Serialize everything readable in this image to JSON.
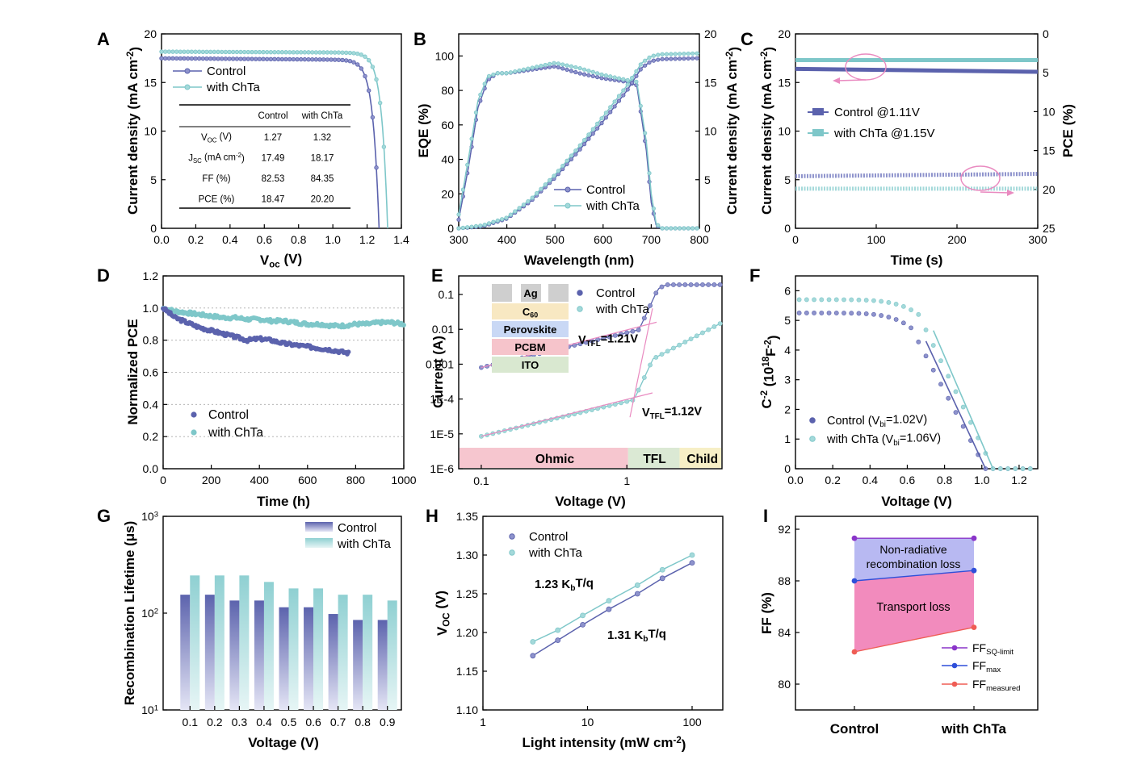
{
  "colors": {
    "control": "#5b62ad",
    "chta": "#7ec7c9",
    "control_light": "#8e93cc",
    "chta_light": "#a4d9da",
    "pink": "#e98ac0",
    "grid": "#bbbbbb",
    "ohmic_band": "#f6c6cf",
    "tfl_band": "#dbe9d4",
    "child_band": "#f7efc6",
    "ag": "#cfcfcf",
    "c60": "#f8e8c2",
    "perovskite": "#c9d8f5",
    "pcbm": "#f6c4cb",
    "ito": "#d9e8d0",
    "nonrad_fill": "#b8b9f2",
    "transport_fill": "#f28bbd",
    "ff_sq": "#8a35c9",
    "ff_max": "#2f4fd9",
    "ff_meas": "#ef5d55"
  },
  "chart_data": [
    {
      "panel": "A",
      "type": "line",
      "xlabel": "V",
      "xlabel_sub": "oc",
      "xlabel_unit": "(V)",
      "ylabel": "Current density (mA cm",
      "ylabel_sup": "-2",
      "ylabel_end": ")",
      "xlim": [
        0.0,
        1.4
      ],
      "ylim": [
        0,
        20
      ],
      "xticks": [
        "0.0",
        "0.2",
        "0.4",
        "0.6",
        "0.8",
        "1.0",
        "1.2",
        "1.4"
      ],
      "yticks": [
        "0",
        "5",
        "10",
        "15",
        "20"
      ],
      "series": [
        {
          "name": "Control",
          "jsc": 17.49,
          "voc": 1.27
        },
        {
          "name": "with ChTa",
          "jsc": 18.17,
          "voc": 1.32
        }
      ],
      "table": {
        "columns": [
          "",
          "Control",
          "with ChTa"
        ],
        "rows": [
          {
            "label": "V",
            "sub": "OC",
            "unit": " (V)",
            "control": "1.27",
            "chta": "1.32"
          },
          {
            "label": "J",
            "sub": "SC",
            "unit": " (mA cm",
            "sup": "-2",
            "unit_end": ")",
            "control": "17.49",
            "chta": "18.17"
          },
          {
            "label": "FF (%)",
            "control": "82.53",
            "chta": "84.35"
          },
          {
            "label": "PCE (%)",
            "control": "18.47",
            "chta": "20.20"
          }
        ]
      }
    },
    {
      "panel": "B",
      "type": "line",
      "xlabel": "Wavelength (nm)",
      "ylabel": "EQE (%)",
      "ylabel_right": "Current density (mA cm",
      "ylabel_right_sup": "-2",
      "ylabel_right_end": ")",
      "xlim": [
        300,
        800
      ],
      "ylim": [
        0,
        110
      ],
      "ylim_right": [
        0,
        20
      ],
      "xticks": [
        "300",
        "400",
        "500",
        "600",
        "700",
        "800"
      ],
      "yticks": [
        "0",
        "20",
        "40",
        "60",
        "80",
        "100"
      ],
      "yticks_right": [
        "0",
        "5",
        "10",
        "15",
        "20"
      ],
      "eqe_control": [
        [
          300,
          5
        ],
        [
          320,
          35
        ],
        [
          340,
          70
        ],
        [
          360,
          86
        ],
        [
          380,
          90
        ],
        [
          400,
          90
        ],
        [
          450,
          92
        ],
        [
          500,
          94
        ],
        [
          550,
          90
        ],
        [
          600,
          87
        ],
        [
          650,
          85
        ],
        [
          670,
          83
        ],
        [
          690,
          45
        ],
        [
          700,
          15
        ],
        [
          710,
          2
        ],
        [
          720,
          0
        ],
        [
          800,
          0
        ]
      ],
      "eqe_chta": [
        [
          300,
          8
        ],
        [
          320,
          40
        ],
        [
          340,
          74
        ],
        [
          360,
          88
        ],
        [
          380,
          90
        ],
        [
          400,
          90
        ],
        [
          450,
          93
        ],
        [
          500,
          96
        ],
        [
          550,
          93
        ],
        [
          600,
          89
        ],
        [
          650,
          86
        ],
        [
          670,
          85
        ],
        [
          690,
          50
        ],
        [
          700,
          20
        ],
        [
          710,
          3
        ],
        [
          720,
          0
        ],
        [
          800,
          0
        ]
      ],
      "jint_control": [
        [
          300,
          0
        ],
        [
          350,
          0.2
        ],
        [
          400,
          1.0
        ],
        [
          450,
          2.8
        ],
        [
          500,
          5.2
        ],
        [
          550,
          8.0
        ],
        [
          600,
          11.0
        ],
        [
          650,
          14.2
        ],
        [
          680,
          16.5
        ],
        [
          700,
          17.2
        ],
        [
          720,
          17.4
        ],
        [
          800,
          17.5
        ]
      ],
      "jint_chta": [
        [
          300,
          0
        ],
        [
          350,
          0.3
        ],
        [
          400,
          1.1
        ],
        [
          450,
          3.0
        ],
        [
          500,
          5.5
        ],
        [
          550,
          8.4
        ],
        [
          600,
          11.5
        ],
        [
          650,
          14.7
        ],
        [
          680,
          17.0
        ],
        [
          700,
          17.7
        ],
        [
          720,
          17.9
        ],
        [
          800,
          18.0
        ]
      ],
      "series": [
        {
          "name": "Control"
        },
        {
          "name": "with ChTa"
        }
      ]
    },
    {
      "panel": "C",
      "type": "line",
      "xlabel": "Time (s)",
      "ylabel": "Current density (mA cm",
      "ylabel_sup": "-2",
      "ylabel_end": ")",
      "ylabel_right": "PCE (%)",
      "xlim": [
        0,
        300
      ],
      "ylim": [
        0,
        20
      ],
      "ylim_right": [
        25,
        0
      ],
      "xticks": [
        "0",
        "100",
        "200",
        "300"
      ],
      "yticks": [
        "0",
        "5",
        "10",
        "15",
        "20"
      ],
      "yticks_right": [
        "0",
        "5",
        "10",
        "15",
        "20",
        "25"
      ],
      "series": [
        {
          "name": "Control @1.11V",
          "j_start": 16.4,
          "j_end": 16.1,
          "pce_start": 18.3,
          "pce_end": 18.0
        },
        {
          "name": "with ChTa @1.15V",
          "j_start": 17.3,
          "j_end": 17.3,
          "pce_start": 19.9,
          "pce_end": 19.9
        }
      ]
    },
    {
      "panel": "D",
      "type": "scatter",
      "xlabel": "Time (h)",
      "ylabel": "Normalized PCE",
      "xlim": [
        0,
        1000
      ],
      "ylim": [
        0.0,
        1.2
      ],
      "xticks": [
        "0",
        "200",
        "400",
        "600",
        "800",
        "1000"
      ],
      "yticks": [
        "0.0",
        "0.2",
        "0.4",
        "0.6",
        "0.8",
        "1.0",
        "1.2"
      ],
      "control": [
        [
          0,
          1.0
        ],
        [
          50,
          0.94
        ],
        [
          100,
          0.91
        ],
        [
          150,
          0.88
        ],
        [
          200,
          0.86
        ],
        [
          250,
          0.84
        ],
        [
          300,
          0.82
        ],
        [
          350,
          0.8
        ],
        [
          400,
          0.81
        ],
        [
          450,
          0.8
        ],
        [
          500,
          0.78
        ],
        [
          550,
          0.77
        ],
        [
          600,
          0.76
        ],
        [
          650,
          0.75
        ],
        [
          700,
          0.74
        ],
        [
          770,
          0.72
        ]
      ],
      "chta": [
        [
          0,
          1.0
        ],
        [
          50,
          0.98
        ],
        [
          100,
          0.97
        ],
        [
          150,
          0.96
        ],
        [
          200,
          0.95
        ],
        [
          250,
          0.94
        ],
        [
          300,
          0.94
        ],
        [
          350,
          0.93
        ],
        [
          400,
          0.93
        ],
        [
          450,
          0.92
        ],
        [
          500,
          0.92
        ],
        [
          550,
          0.91
        ],
        [
          600,
          0.9
        ],
        [
          650,
          0.9
        ],
        [
          700,
          0.89
        ],
        [
          750,
          0.89
        ],
        [
          800,
          0.9
        ],
        [
          850,
          0.9
        ],
        [
          900,
          0.91
        ],
        [
          950,
          0.91
        ],
        [
          1000,
          0.9
        ]
      ],
      "series": [
        {
          "name": "Control"
        },
        {
          "name": "with ChTa"
        }
      ]
    },
    {
      "panel": "E",
      "type": "scatter",
      "xlabel": "Voltage (V)",
      "ylabel": "Current (A)",
      "xscale": "log",
      "yscale": "log",
      "xlim": [
        0.07,
        4.5
      ],
      "ylim": [
        1e-06,
        0.2
      ],
      "xticks": [
        "0.1",
        "1"
      ],
      "yticks": [
        "1E-6",
        "1E-5",
        "1E-4",
        "0.001",
        "0.01",
        "0.1"
      ],
      "series": [
        {
          "name": "Control"
        },
        {
          "name": "with ChTa"
        }
      ],
      "vtfl_control": "V",
      "vtfl_control_sub": "TFL",
      "vtfl_control_val": "=1.21V",
      "vtfl_chta": "V",
      "vtfl_chta_sub": "TFL",
      "vtfl_chta_val": "=1.12V",
      "regions": [
        "Ohmic",
        "TFL",
        "Child"
      ],
      "device_layers": [
        "Ag",
        "C",
        "Perovskite",
        "PCBM",
        "ITO"
      ],
      "c60_sub": "60"
    },
    {
      "panel": "F",
      "type": "scatter",
      "xlabel": "Voltage (V)",
      "ylabel": "C",
      "ylabel_sup": "-2",
      "ylabel_unit": " (10",
      "ylabel_unit_sup": "18",
      "ylabel_unit_mid": "F",
      "ylabel_unit_sup2": "-2",
      "ylabel_unit_end": ")",
      "xlim": [
        0.0,
        1.3
      ],
      "ylim": [
        0,
        6.5
      ],
      "xticks": [
        "0.0",
        "0.2",
        "0.4",
        "0.6",
        "0.8",
        "1.0",
        "1.2"
      ],
      "yticks": [
        "0",
        "1",
        "2",
        "3",
        "4",
        "5",
        "6"
      ],
      "series": [
        {
          "name": "Control (V",
          "sub": "bi",
          "end": "=1.02V)",
          "vbi": 1.02
        },
        {
          "name": "with ChTa (V",
          "sub": "bi",
          "end": "=1.06V)",
          "vbi": 1.06
        }
      ]
    },
    {
      "panel": "G",
      "type": "bar",
      "xlabel": "Voltage (V)",
      "ylabel": "Recombination Lifetime (μs)",
      "yscale": "log",
      "ylim": [
        10,
        1000
      ],
      "yticks": [
        "10",
        "10",
        "10"
      ],
      "ytick_sups": [
        "1",
        "2",
        "3"
      ],
      "categories": [
        "0.1",
        "0.2",
        "0.3",
        "0.4",
        "0.5",
        "0.6",
        "0.7",
        "0.8",
        "0.9"
      ],
      "series": [
        {
          "name": "Control",
          "values": [
            155,
            155,
            135,
            135,
            115,
            115,
            98,
            85,
            85
          ]
        },
        {
          "name": "with ChTa",
          "values": [
            245,
            245,
            245,
            210,
            180,
            180,
            155,
            155,
            135
          ]
        }
      ]
    },
    {
      "panel": "H",
      "type": "scatter",
      "xlabel": "Light intensity (mW cm",
      "xlabel_sup": "-2",
      "xlabel_end": ")",
      "ylabel": "V",
      "ylabel_sub": "OC",
      "ylabel_unit": " (V)",
      "xscale": "log",
      "xlim": [
        1,
        100
      ],
      "ylim": [
        1.1,
        1.35
      ],
      "xticks": [
        "1",
        "10",
        "100"
      ],
      "yticks": [
        "1.10",
        "1.15",
        "1.20",
        "1.25",
        "1.30",
        "1.35"
      ],
      "control": [
        [
          3,
          1.17
        ],
        [
          5.2,
          1.19
        ],
        [
          9,
          1.21
        ],
        [
          16,
          1.23
        ],
        [
          30,
          1.25
        ],
        [
          52,
          1.27
        ],
        [
          100,
          1.29
        ]
      ],
      "chta": [
        [
          3,
          1.188
        ],
        [
          5.2,
          1.203
        ],
        [
          9,
          1.222
        ],
        [
          16,
          1.241
        ],
        [
          30,
          1.261
        ],
        [
          52,
          1.281
        ],
        [
          100,
          1.3
        ]
      ],
      "series": [
        {
          "name": "Control"
        },
        {
          "name": "with ChTa"
        }
      ],
      "slope_chta": "1.23 K",
      "slope_chta_sub": "b",
      "slope_chta_end": "T/q",
      "slope_control": "1.31 K",
      "slope_control_sub": "b",
      "slope_control_end": "T/q"
    },
    {
      "panel": "I",
      "type": "line",
      "xlabel": "",
      "ylabel": "FF (%)",
      "categories": [
        "Control",
        "with ChTa"
      ],
      "ylim": [
        78,
        93
      ],
      "yticks": [
        "80",
        "84",
        "88",
        "92"
      ],
      "series": [
        {
          "name": "FF",
          "sub": "SQ-limit",
          "values": [
            91.3,
            91.3
          ]
        },
        {
          "name": "FF",
          "sub": "max",
          "values": [
            88.0,
            88.8
          ]
        },
        {
          "name": "FF",
          "sub": "measured",
          "values": [
            82.5,
            84.4
          ]
        }
      ],
      "label_nonrad_1": "Non-radiative",
      "label_nonrad_2": "recombination loss",
      "label_transport": "Transport loss"
    }
  ]
}
